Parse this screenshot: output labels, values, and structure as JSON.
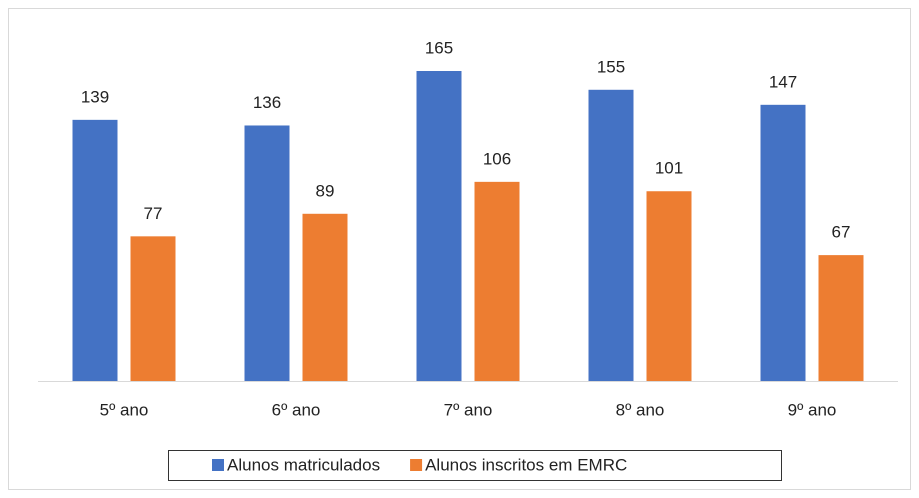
{
  "chart_data": {
    "type": "bar",
    "categories": [
      "5º ano",
      "6º ano",
      "7º ano",
      "8º ano",
      "9º ano"
    ],
    "series": [
      {
        "name": "Alunos matriculados",
        "color": "#4472c4",
        "values": [
          139,
          136,
          165,
          155,
          147
        ]
      },
      {
        "name": "Alunos inscritos em EMRC",
        "color": "#ed7d31",
        "values": [
          77,
          89,
          106,
          101,
          67
        ]
      }
    ],
    "legend": "bottom"
  }
}
